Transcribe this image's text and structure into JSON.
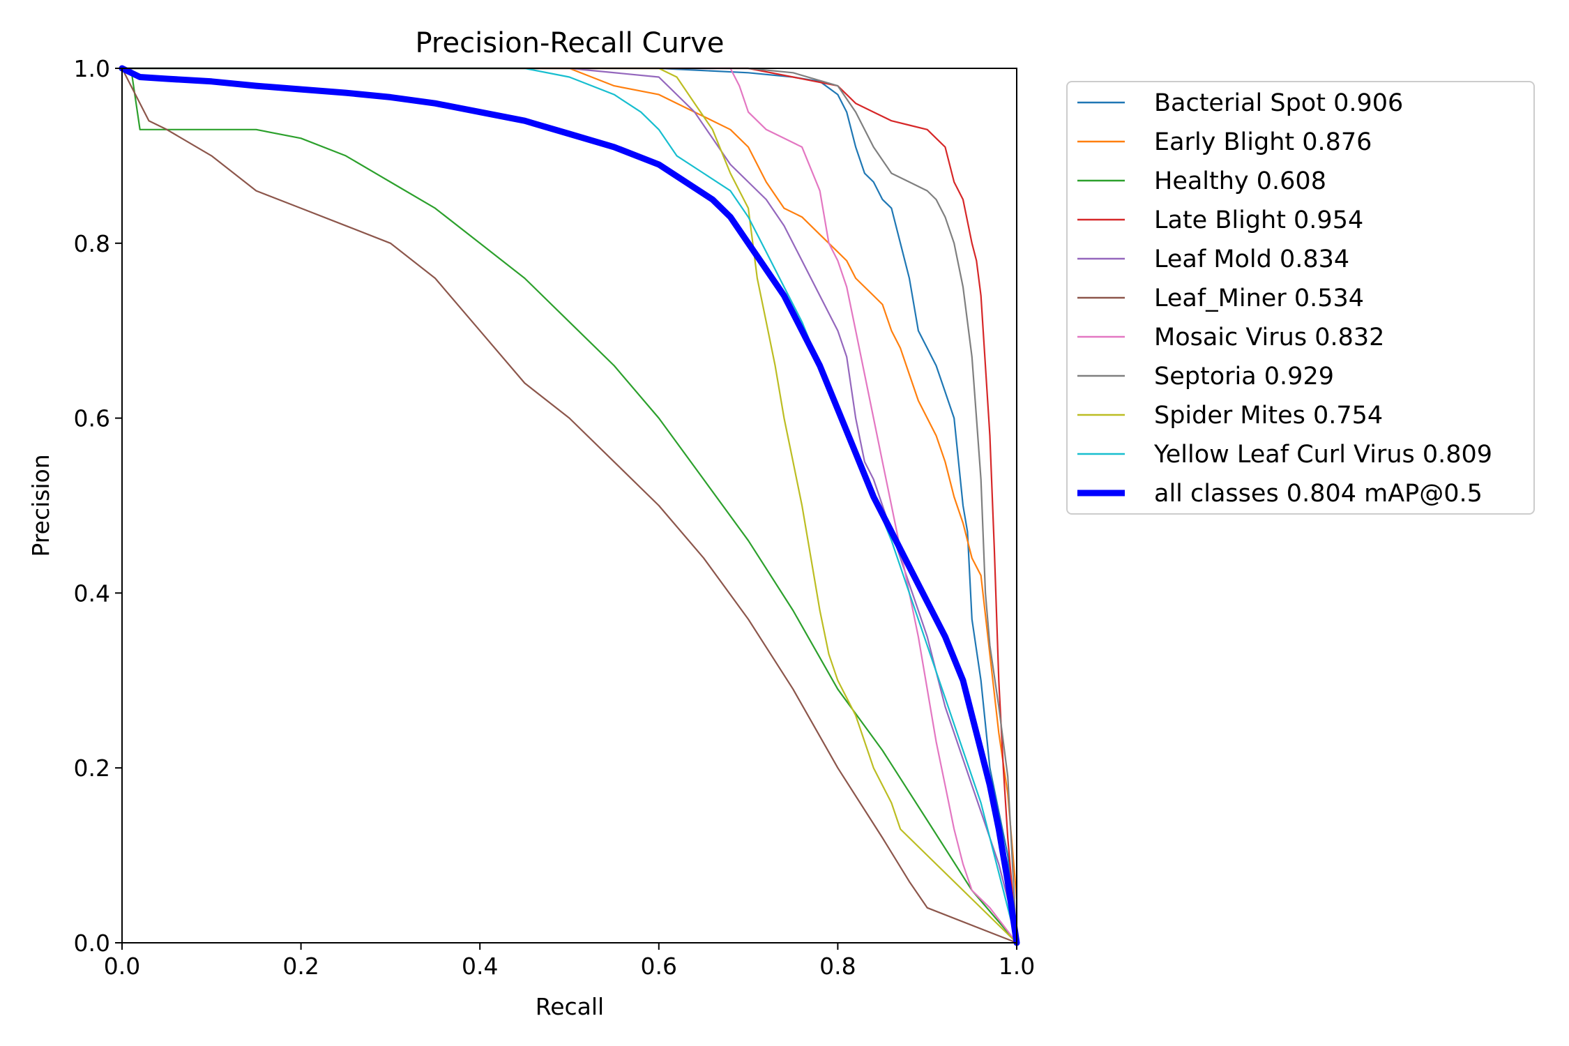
{
  "chart_data": {
    "type": "line",
    "title": "Precision-Recall Curve",
    "xlabel": "Recall",
    "ylabel": "Precision",
    "xlim": [
      0.0,
      1.0
    ],
    "ylim": [
      0.0,
      1.0
    ],
    "xticks": [
      "0.0",
      "0.2",
      "0.4",
      "0.6",
      "0.8",
      "1.0"
    ],
    "yticks": [
      "0.0",
      "0.2",
      "0.4",
      "0.6",
      "0.8",
      "1.0"
    ],
    "grid": false,
    "legend_position": "outside-right-top",
    "series": [
      {
        "name": "Bacterial Spot 0.906",
        "color": "#1f77b4",
        "x": [
          0.0,
          0.01,
          0.3,
          0.5,
          0.6,
          0.7,
          0.75,
          0.78,
          0.8,
          0.81,
          0.82,
          0.83,
          0.84,
          0.85,
          0.86,
          0.87,
          0.88,
          0.89,
          0.9,
          0.91,
          0.92,
          0.93,
          0.935,
          0.94,
          0.945,
          0.95,
          0.96,
          0.97,
          0.98,
          0.99,
          1.0
        ],
        "y": [
          1.0,
          1.0,
          1.0,
          1.0,
          1.0,
          0.995,
          0.99,
          0.985,
          0.97,
          0.95,
          0.91,
          0.88,
          0.87,
          0.85,
          0.84,
          0.8,
          0.76,
          0.7,
          0.68,
          0.66,
          0.63,
          0.6,
          0.55,
          0.5,
          0.47,
          0.37,
          0.3,
          0.2,
          0.15,
          0.1,
          0.0
        ]
      },
      {
        "name": "Early Blight 0.876",
        "color": "#ff7f0e",
        "x": [
          0.0,
          0.2,
          0.4,
          0.5,
          0.55,
          0.6,
          0.64,
          0.66,
          0.68,
          0.7,
          0.72,
          0.74,
          0.76,
          0.78,
          0.8,
          0.81,
          0.82,
          0.83,
          0.84,
          0.85,
          0.86,
          0.87,
          0.88,
          0.89,
          0.9,
          0.91,
          0.92,
          0.93,
          0.94,
          0.95,
          0.96,
          0.97,
          0.98,
          0.99,
          1.0
        ],
        "y": [
          1.0,
          1.0,
          1.0,
          1.0,
          0.98,
          0.97,
          0.95,
          0.94,
          0.93,
          0.91,
          0.87,
          0.84,
          0.83,
          0.81,
          0.79,
          0.78,
          0.76,
          0.75,
          0.74,
          0.73,
          0.7,
          0.68,
          0.65,
          0.62,
          0.6,
          0.58,
          0.55,
          0.51,
          0.48,
          0.44,
          0.42,
          0.33,
          0.24,
          0.17,
          0.05
        ]
      },
      {
        "name": "Healthy 0.608",
        "color": "#2ca02c",
        "x": [
          0.0,
          0.01,
          0.02,
          0.15,
          0.2,
          0.25,
          0.3,
          0.35,
          0.4,
          0.45,
          0.5,
          0.55,
          0.6,
          0.65,
          0.7,
          0.75,
          0.8,
          0.85,
          0.9,
          0.95,
          1.0
        ],
        "y": [
          1.0,
          1.0,
          0.93,
          0.93,
          0.92,
          0.9,
          0.87,
          0.84,
          0.8,
          0.76,
          0.71,
          0.66,
          0.6,
          0.53,
          0.46,
          0.38,
          0.29,
          0.22,
          0.14,
          0.06,
          0.0
        ]
      },
      {
        "name": "Late Blight 0.954",
        "color": "#d62728",
        "x": [
          0.0,
          0.5,
          0.7,
          0.75,
          0.8,
          0.82,
          0.84,
          0.86,
          0.88,
          0.9,
          0.91,
          0.92,
          0.93,
          0.94,
          0.95,
          0.955,
          0.96,
          0.965,
          0.97,
          0.975,
          0.98,
          0.985,
          0.99,
          1.0
        ],
        "y": [
          1.0,
          1.0,
          1.0,
          0.99,
          0.98,
          0.96,
          0.95,
          0.94,
          0.935,
          0.93,
          0.92,
          0.91,
          0.87,
          0.85,
          0.8,
          0.78,
          0.74,
          0.66,
          0.58,
          0.45,
          0.3,
          0.2,
          0.12,
          0.0
        ]
      },
      {
        "name": "Leaf Mold 0.834",
        "color": "#9467bd",
        "x": [
          0.0,
          0.3,
          0.5,
          0.6,
          0.62,
          0.64,
          0.66,
          0.68,
          0.7,
          0.72,
          0.74,
          0.76,
          0.78,
          0.8,
          0.81,
          0.82,
          0.83,
          0.84,
          0.85,
          0.86,
          0.87,
          0.88,
          0.89,
          0.9,
          0.91,
          0.92,
          0.93,
          0.94,
          0.95,
          0.96,
          0.97,
          0.98,
          0.99,
          1.0
        ],
        "y": [
          1.0,
          1.0,
          1.0,
          0.99,
          0.97,
          0.95,
          0.92,
          0.89,
          0.87,
          0.85,
          0.82,
          0.78,
          0.74,
          0.7,
          0.67,
          0.6,
          0.55,
          0.53,
          0.5,
          0.47,
          0.44,
          0.41,
          0.38,
          0.35,
          0.31,
          0.27,
          0.24,
          0.21,
          0.18,
          0.15,
          0.12,
          0.09,
          0.05,
          0.0
        ]
      },
      {
        "name": "Leaf_Miner 0.534",
        "color": "#8c564b",
        "x": [
          0.0,
          0.02,
          0.03,
          0.05,
          0.1,
          0.15,
          0.2,
          0.25,
          0.3,
          0.35,
          0.4,
          0.45,
          0.5,
          0.55,
          0.6,
          0.65,
          0.7,
          0.75,
          0.8,
          0.85,
          0.88,
          0.9,
          1.0
        ],
        "y": [
          1.0,
          0.96,
          0.94,
          0.93,
          0.9,
          0.86,
          0.84,
          0.82,
          0.8,
          0.76,
          0.7,
          0.64,
          0.6,
          0.55,
          0.5,
          0.44,
          0.37,
          0.29,
          0.2,
          0.12,
          0.07,
          0.04,
          0.0
        ]
      },
      {
        "name": "Mosaic Virus 0.832",
        "color": "#e377c2",
        "x": [
          0.0,
          0.5,
          0.68,
          0.69,
          0.7,
          0.72,
          0.74,
          0.76,
          0.78,
          0.79,
          0.8,
          0.81,
          0.82,
          0.83,
          0.84,
          0.85,
          0.86,
          0.87,
          0.88,
          0.89,
          0.9,
          0.91,
          0.92,
          0.93,
          0.94,
          0.95,
          0.97,
          1.0
        ],
        "y": [
          1.0,
          1.0,
          1.0,
          0.98,
          0.95,
          0.93,
          0.92,
          0.91,
          0.86,
          0.8,
          0.78,
          0.75,
          0.7,
          0.65,
          0.6,
          0.55,
          0.5,
          0.45,
          0.4,
          0.35,
          0.29,
          0.23,
          0.18,
          0.13,
          0.09,
          0.06,
          0.04,
          0.0
        ]
      },
      {
        "name": "Septoria 0.929",
        "color": "#7f7f7f",
        "x": [
          0.0,
          0.5,
          0.7,
          0.75,
          0.8,
          0.82,
          0.84,
          0.86,
          0.88,
          0.9,
          0.91,
          0.92,
          0.93,
          0.94,
          0.95,
          0.955,
          0.96,
          0.965,
          0.97,
          0.98,
          0.99,
          1.0
        ],
        "y": [
          1.0,
          1.0,
          1.0,
          0.995,
          0.98,
          0.95,
          0.91,
          0.88,
          0.87,
          0.86,
          0.85,
          0.83,
          0.8,
          0.75,
          0.67,
          0.6,
          0.53,
          0.4,
          0.34,
          0.27,
          0.19,
          0.0
        ]
      },
      {
        "name": "Spider Mites 0.754",
        "color": "#bcbd22",
        "x": [
          0.0,
          0.3,
          0.6,
          0.62,
          0.64,
          0.66,
          0.68,
          0.7,
          0.71,
          0.72,
          0.73,
          0.74,
          0.75,
          0.76,
          0.77,
          0.78,
          0.79,
          0.8,
          0.82,
          0.84,
          0.86,
          0.87,
          1.0
        ],
        "y": [
          1.0,
          1.0,
          1.0,
          0.99,
          0.96,
          0.93,
          0.88,
          0.84,
          0.76,
          0.71,
          0.66,
          0.6,
          0.55,
          0.5,
          0.44,
          0.38,
          0.33,
          0.3,
          0.26,
          0.2,
          0.16,
          0.13,
          0.0
        ]
      },
      {
        "name": "Yellow Leaf Curl Virus 0.809",
        "color": "#17becf",
        "x": [
          0.0,
          0.3,
          0.45,
          0.5,
          0.55,
          0.58,
          0.6,
          0.62,
          0.65,
          0.68,
          0.7,
          0.72,
          0.74,
          0.76,
          0.78,
          0.8,
          0.82,
          0.84,
          0.86,
          0.88,
          0.9,
          0.92,
          0.94,
          0.96,
          1.0
        ],
        "y": [
          1.0,
          1.0,
          1.0,
          0.99,
          0.97,
          0.95,
          0.93,
          0.9,
          0.88,
          0.86,
          0.83,
          0.79,
          0.75,
          0.71,
          0.66,
          0.61,
          0.56,
          0.51,
          0.46,
          0.4,
          0.34,
          0.28,
          0.22,
          0.16,
          0.0
        ]
      },
      {
        "name": "all classes 0.804 mAP@0.5",
        "color": "#0000ff",
        "bold": true,
        "x": [
          0.0,
          0.02,
          0.05,
          0.1,
          0.15,
          0.2,
          0.25,
          0.3,
          0.35,
          0.4,
          0.45,
          0.5,
          0.55,
          0.6,
          0.63,
          0.66,
          0.68,
          0.7,
          0.72,
          0.74,
          0.76,
          0.78,
          0.8,
          0.82,
          0.84,
          0.86,
          0.88,
          0.9,
          0.92,
          0.94,
          0.95,
          0.96,
          0.97,
          0.98,
          0.99,
          1.0
        ],
        "y": [
          1.0,
          0.99,
          0.988,
          0.985,
          0.98,
          0.976,
          0.972,
          0.967,
          0.96,
          0.95,
          0.94,
          0.925,
          0.91,
          0.89,
          0.87,
          0.85,
          0.83,
          0.8,
          0.77,
          0.74,
          0.7,
          0.66,
          0.61,
          0.56,
          0.51,
          0.47,
          0.43,
          0.39,
          0.35,
          0.3,
          0.26,
          0.22,
          0.18,
          0.13,
          0.07,
          0.0
        ]
      }
    ]
  }
}
